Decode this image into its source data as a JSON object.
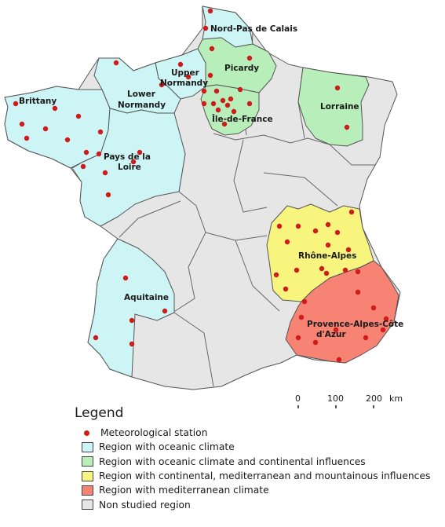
{
  "colors": {
    "oceanic": "#cdf5f6",
    "oceanic_continental": "#b8eeb9",
    "continental_mediterranean": "#f8f57f",
    "mediterranean": "#f68373",
    "non_studied": "#e6e6e6",
    "station": "#d21a1a",
    "border": "#555555"
  },
  "regions": {
    "nord_pas_de_calais": "Nord-Pas de Calais",
    "picardy": "Picardy",
    "upper_normandy": [
      "Upper",
      "Normandy"
    ],
    "lower_normandy": [
      "Lower",
      "Normandy"
    ],
    "lorraine": "Lorraine",
    "brittany": "Brittany",
    "ile_de_france": "Île-de-France",
    "pays_de_la_loire": [
      "Pays de la",
      "Loire"
    ],
    "rhone_alpes": "Rhône-Alpes",
    "aquitaine": "Aquitaine",
    "paca": [
      "Provence-Alpes-Côte",
      "d'Azur"
    ]
  },
  "scalebar": {
    "ticks": [
      "0",
      "100",
      "200"
    ],
    "unit": "km"
  },
  "legend": {
    "title": "Legend",
    "items": [
      {
        "label": "Meteorological station",
        "kind": "dot",
        "color": "#d21a1a"
      },
      {
        "label": "Region with oceanic climate",
        "kind": "box",
        "color": "#cdf5f6"
      },
      {
        "label": "Region with oceanic climate and continental influences",
        "kind": "box",
        "color": "#b8eeb9"
      },
      {
        "label": "Region with continental, mediterranean and mountainous influences",
        "kind": "box",
        "color": "#f8f57f"
      },
      {
        "label": "Region with mediterranean climate",
        "kind": "box",
        "color": "#f68373"
      },
      {
        "label": "Non studied region",
        "kind": "box",
        "color": "#e6e6e6"
      }
    ]
  }
}
